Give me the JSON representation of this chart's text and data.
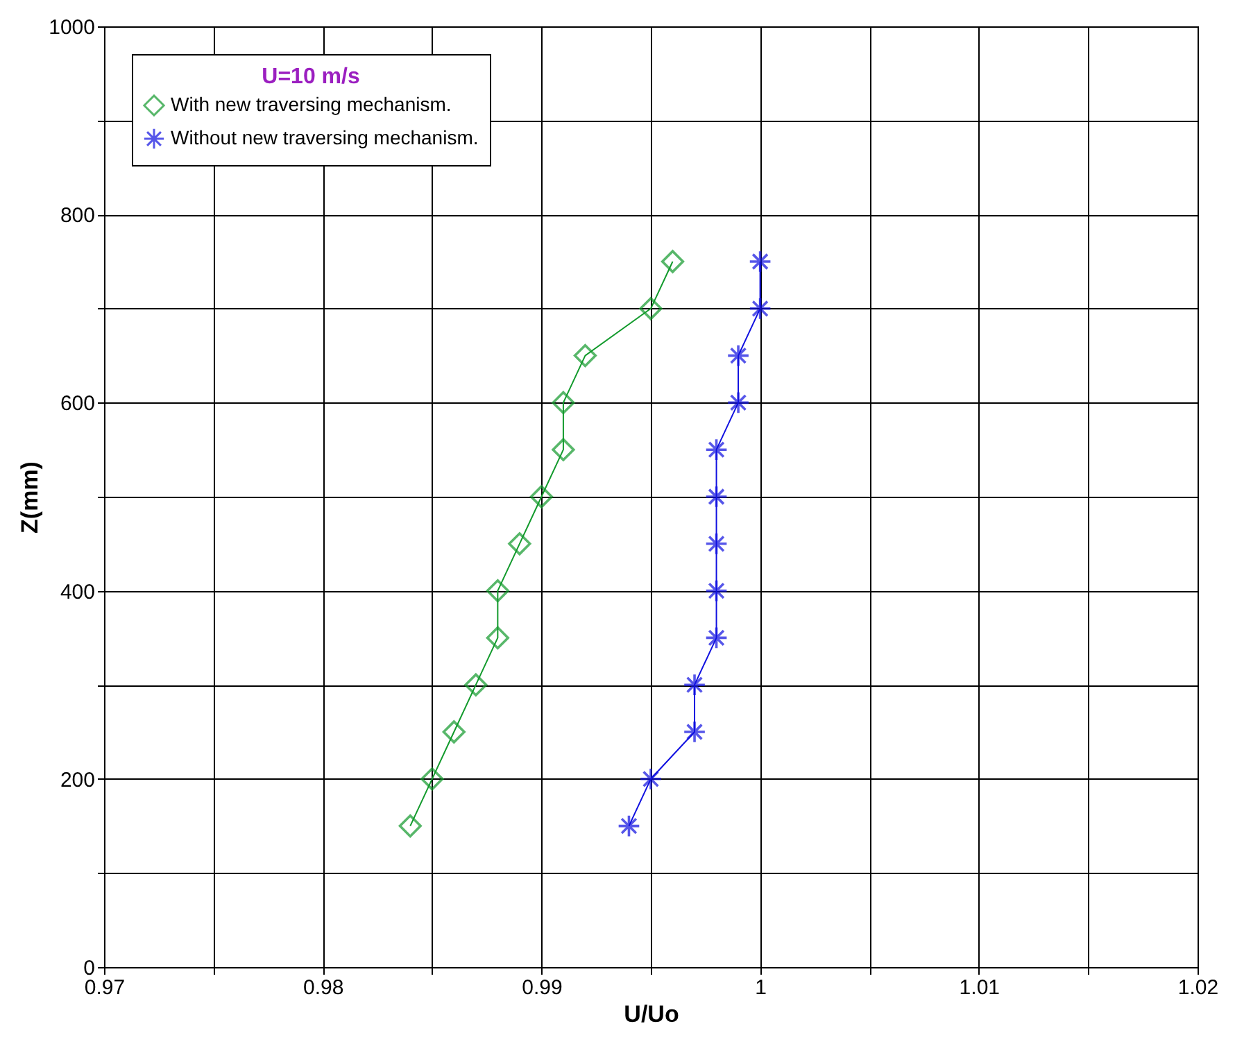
{
  "chart_data": {
    "type": "line",
    "xlabel": "U/Uo",
    "ylabel": "Z(mm)",
    "legend_title": "U=10 m/s",
    "legend": "top left",
    "grid": true,
    "xlim": [
      0.97,
      1.02
    ],
    "xticks": [
      0.97,
      {
        "value": 0.975,
        "label": null
      },
      0.98,
      {
        "value": 0.985,
        "label": null
      },
      0.99,
      {
        "value": 0.995,
        "label": null
      },
      1,
      {
        "value": 1.005,
        "label": null
      },
      1.01,
      {
        "value": 1.015,
        "label": null
      },
      1.02
    ],
    "ylim": [
      0,
      1000
    ],
    "yticks": [
      0,
      {
        "value": 100,
        "label": null
      },
      200,
      {
        "value": 300,
        "label": null
      },
      400,
      {
        "value": 500,
        "label": null
      },
      600,
      {
        "value": 700,
        "label": null
      },
      800,
      {
        "value": 900,
        "label": null
      },
      1000
    ],
    "series": [
      {
        "name": "With new traversing mechanism.",
        "color": "#129a2c",
        "marker": "diamond",
        "x": [
          0.984,
          0.985,
          0.986,
          0.987,
          0.988,
          0.988,
          0.989,
          0.99,
          0.991,
          0.991,
          0.992,
          0.995,
          0.996
        ],
        "values": [
          150,
          200,
          250,
          300,
          350,
          400,
          450,
          500,
          550,
          600,
          650,
          700,
          750
        ]
      },
      {
        "name": "Without new traversing mechanism.",
        "color": "#1010e0",
        "marker": "cross",
        "x": [
          0.994,
          0.995,
          0.997,
          0.997,
          0.998,
          0.998,
          0.998,
          0.998,
          0.998,
          0.999,
          0.999,
          1.0,
          1.0
        ],
        "values": [
          150,
          200,
          250,
          300,
          350,
          400,
          450,
          500,
          550,
          600,
          650,
          700,
          750
        ]
      }
    ]
  }
}
